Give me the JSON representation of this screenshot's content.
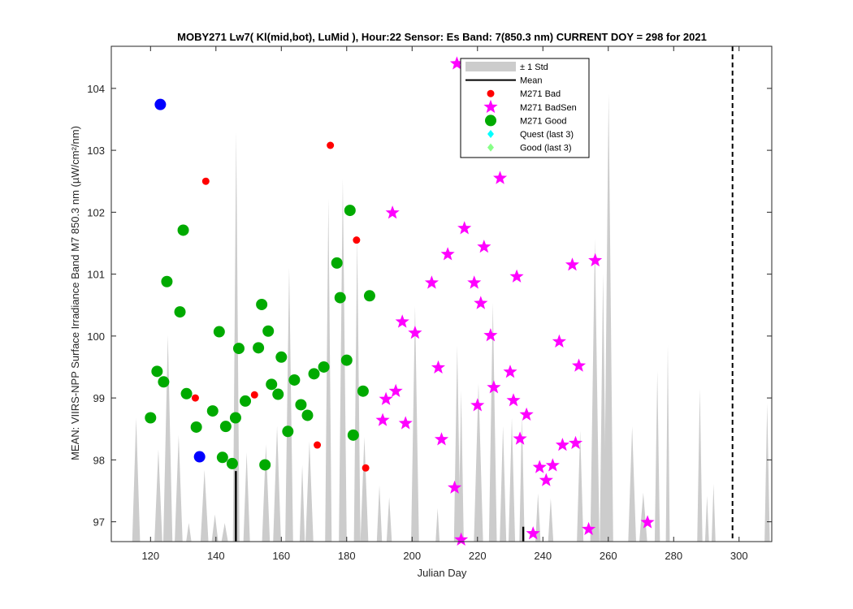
{
  "chart_data": {
    "type": "scatter",
    "title": "MOBY271   Lw7( Kl(mid,bot), LuMid ),   Hour:22 Sensor: Es Band: 7(850.3 nm)   CURRENT DOY = 298 for 2021",
    "xlabel": "Julian Day",
    "ylabel": "MEAN: VIIRS-NPP Surface Irradiance Band M7 850.3 nm (µW/cm²/nm)",
    "xlim": [
      108,
      310
    ],
    "ylim": [
      96.68,
      104.68
    ],
    "xticks": [
      120,
      140,
      160,
      180,
      200,
      220,
      240,
      260,
      280,
      300
    ],
    "yticks": [
      97,
      98,
      99,
      100,
      101,
      102,
      103,
      104
    ],
    "current_doy": 298,
    "grid": false,
    "legend_position": "top-center",
    "legend": [
      {
        "label": "± 1 Std",
        "kind": "patch",
        "color": "#cccccc"
      },
      {
        "label": "Mean",
        "kind": "line",
        "color": "#000000"
      },
      {
        "label": "M271 Bad",
        "kind": "marker-circle-small",
        "color": "#ff0000"
      },
      {
        "label": "M271 BadSen",
        "kind": "marker-star",
        "color": "#ff00ff"
      },
      {
        "label": "M271 Good",
        "kind": "marker-circle",
        "color": "#00aa00"
      },
      {
        "label": "Quest (last 3)",
        "kind": "marker-diamond",
        "color": "#00ffff"
      },
      {
        "label": "Good (last 3)",
        "kind": "marker-diamond",
        "color": "#88ff88"
      }
    ],
    "std_band": {
      "name": "± 1 Std",
      "color": "#cccccc",
      "spikes": [
        {
          "x": 115.6,
          "y": 98.68,
          "w": 1.2
        },
        {
          "x": 122.4,
          "y": 98.17,
          "w": 1.2
        },
        {
          "x": 125.3,
          "y": 100.02,
          "w": 1.4
        },
        {
          "x": 128.6,
          "y": 98.4,
          "w": 1.2
        },
        {
          "x": 131.7,
          "y": 96.98,
          "w": 0.8
        },
        {
          "x": 136.5,
          "y": 97.84,
          "w": 1.2
        },
        {
          "x": 139.7,
          "y": 97.12,
          "w": 1.0
        },
        {
          "x": 142.7,
          "y": 96.98,
          "w": 1.0
        },
        {
          "x": 146.2,
          "y": 103.31,
          "w": 1.0
        },
        {
          "x": 149.4,
          "y": 98.12,
          "w": 1.0
        },
        {
          "x": 155.3,
          "y": 98.25,
          "w": 1.2
        },
        {
          "x": 158.7,
          "y": 98.55,
          "w": 1.2
        },
        {
          "x": 162.4,
          "y": 101.11,
          "w": 1.2
        },
        {
          "x": 166.4,
          "y": 97.92,
          "w": 0.8
        },
        {
          "x": 168.6,
          "y": 98.3,
          "w": 1.2
        },
        {
          "x": 174.4,
          "y": 102.23,
          "w": 1.0
        },
        {
          "x": 178.8,
          "y": 102.55,
          "w": 1.2
        },
        {
          "x": 183.2,
          "y": 101.61,
          "w": 1.0
        },
        {
          "x": 185.4,
          "y": 98.37,
          "w": 1.2
        },
        {
          "x": 190.0,
          "y": 97.59,
          "w": 0.8
        },
        {
          "x": 193.0,
          "y": 97.4,
          "w": 0.8
        },
        {
          "x": 200.9,
          "y": 100.49,
          "w": 1.2
        },
        {
          "x": 207.8,
          "y": 97.22,
          "w": 0.6
        },
        {
          "x": 213.8,
          "y": 99.85,
          "w": 1.0
        },
        {
          "x": 215.0,
          "y": 99.12,
          "w": 0.8
        },
        {
          "x": 220.3,
          "y": 99.24,
          "w": 1.4
        },
        {
          "x": 224.7,
          "y": 100.54,
          "w": 1.2
        },
        {
          "x": 227.8,
          "y": 98.55,
          "w": 1.0
        },
        {
          "x": 230.5,
          "y": 98.68,
          "w": 1.0
        },
        {
          "x": 233.6,
          "y": 98.72,
          "w": 0.8
        },
        {
          "x": 238.5,
          "y": 97.46,
          "w": 0.8
        },
        {
          "x": 242.4,
          "y": 97.38,
          "w": 0.8
        },
        {
          "x": 251.4,
          "y": 98.47,
          "w": 1.0
        },
        {
          "x": 255.9,
          "y": 101.57,
          "w": 1.4
        },
        {
          "x": 258.4,
          "y": 101.01,
          "w": 1.0
        },
        {
          "x": 260.1,
          "y": 103.92,
          "w": 1.4
        },
        {
          "x": 267.3,
          "y": 98.54,
          "w": 1.2
        },
        {
          "x": 270.7,
          "y": 97.47,
          "w": 1.2
        },
        {
          "x": 275.0,
          "y": 99.44,
          "w": 0.8
        },
        {
          "x": 278.2,
          "y": 99.86,
          "w": 0.6
        },
        {
          "x": 288.0,
          "y": 99.15,
          "w": 0.8
        },
        {
          "x": 290.2,
          "y": 97.42,
          "w": 0.6
        },
        {
          "x": 292.2,
          "y": 97.61,
          "w": 0.6
        },
        {
          "x": 308.6,
          "y": 98.92,
          "w": 0.8
        }
      ]
    },
    "mean": {
      "name": "Mean",
      "color": "#000000",
      "segments": [
        {
          "x": 146.1,
          "y": 97.82
        },
        {
          "x": 234.0,
          "y": 96.92
        }
      ]
    },
    "series": [
      {
        "name": "M271 Bad",
        "marker": "circle-small",
        "color": "#ff0000",
        "points": [
          {
            "x": 136.9,
            "y": 102.5
          },
          {
            "x": 175.0,
            "y": 103.08
          },
          {
            "x": 183.0,
            "y": 101.55
          },
          {
            "x": 133.7,
            "y": 99.0
          },
          {
            "x": 151.8,
            "y": 99.05
          },
          {
            "x": 171.0,
            "y": 98.24
          },
          {
            "x": 185.8,
            "y": 97.87
          }
        ]
      },
      {
        "name": "M271 BadSen",
        "marker": "star",
        "color": "#ff00ff",
        "points": [
          {
            "x": 213.7,
            "y": 104.4
          },
          {
            "x": 226.9,
            "y": 102.55
          },
          {
            "x": 194.0,
            "y": 101.99
          },
          {
            "x": 216.0,
            "y": 101.74
          },
          {
            "x": 222.0,
            "y": 101.44
          },
          {
            "x": 210.9,
            "y": 101.32
          },
          {
            "x": 256.0,
            "y": 101.22
          },
          {
            "x": 249.0,
            "y": 101.15
          },
          {
            "x": 232.0,
            "y": 100.96
          },
          {
            "x": 206.0,
            "y": 100.86
          },
          {
            "x": 219.0,
            "y": 100.86
          },
          {
            "x": 221.0,
            "y": 100.53
          },
          {
            "x": 197.0,
            "y": 100.23
          },
          {
            "x": 200.9,
            "y": 100.05
          },
          {
            "x": 224.0,
            "y": 100.01
          },
          {
            "x": 245.0,
            "y": 99.91
          },
          {
            "x": 251.0,
            "y": 99.52
          },
          {
            "x": 208.0,
            "y": 99.49
          },
          {
            "x": 230.0,
            "y": 99.42
          },
          {
            "x": 225.0,
            "y": 99.17
          },
          {
            "x": 195.0,
            "y": 99.11
          },
          {
            "x": 192.0,
            "y": 98.98
          },
          {
            "x": 231.0,
            "y": 98.96
          },
          {
            "x": 220.0,
            "y": 98.88
          },
          {
            "x": 235.0,
            "y": 98.73
          },
          {
            "x": 191.0,
            "y": 98.64
          },
          {
            "x": 198.0,
            "y": 98.59
          },
          {
            "x": 233.0,
            "y": 98.34
          },
          {
            "x": 209.0,
            "y": 98.33
          },
          {
            "x": 250.0,
            "y": 98.27
          },
          {
            "x": 246.0,
            "y": 98.24
          },
          {
            "x": 243.0,
            "y": 97.91
          },
          {
            "x": 239.0,
            "y": 97.88
          },
          {
            "x": 241.0,
            "y": 97.67
          },
          {
            "x": 213.0,
            "y": 97.55
          },
          {
            "x": 272.0,
            "y": 96.99
          },
          {
            "x": 254.0,
            "y": 96.88
          },
          {
            "x": 237.0,
            "y": 96.81
          },
          {
            "x": 215.0,
            "y": 96.71
          }
        ]
      },
      {
        "name": "M271 Good",
        "marker": "circle",
        "color": "#00aa00",
        "points": [
          {
            "x": 120.0,
            "y": 98.68
          },
          {
            "x": 122.0,
            "y": 99.43
          },
          {
            "x": 124.0,
            "y": 99.26
          },
          {
            "x": 125.0,
            "y": 100.88
          },
          {
            "x": 129.0,
            "y": 100.39
          },
          {
            "x": 130.0,
            "y": 101.71
          },
          {
            "x": 131.0,
            "y": 99.07
          },
          {
            "x": 134.0,
            "y": 98.53
          },
          {
            "x": 139.0,
            "y": 98.79
          },
          {
            "x": 141.0,
            "y": 100.07
          },
          {
            "x": 142.0,
            "y": 98.04
          },
          {
            "x": 143.0,
            "y": 98.54
          },
          {
            "x": 145.0,
            "y": 97.94
          },
          {
            "x": 146.0,
            "y": 98.68
          },
          {
            "x": 147.0,
            "y": 99.8
          },
          {
            "x": 149.0,
            "y": 98.95
          },
          {
            "x": 153.0,
            "y": 99.81
          },
          {
            "x": 154.0,
            "y": 100.51
          },
          {
            "x": 155.0,
            "y": 97.92
          },
          {
            "x": 156.0,
            "y": 100.08
          },
          {
            "x": 157.0,
            "y": 99.22
          },
          {
            "x": 159.0,
            "y": 99.06
          },
          {
            "x": 160.0,
            "y": 99.66
          },
          {
            "x": 162.0,
            "y": 98.46
          },
          {
            "x": 164.0,
            "y": 99.29
          },
          {
            "x": 166.0,
            "y": 98.89
          },
          {
            "x": 168.0,
            "y": 98.72
          },
          {
            "x": 170.0,
            "y": 99.39
          },
          {
            "x": 173.0,
            "y": 99.5
          },
          {
            "x": 177.0,
            "y": 101.18
          },
          {
            "x": 178.0,
            "y": 100.62
          },
          {
            "x": 180.0,
            "y": 99.61
          },
          {
            "x": 181.0,
            "y": 102.03
          },
          {
            "x": 182.0,
            "y": 98.4
          },
          {
            "x": 185.0,
            "y": 99.11
          },
          {
            "x": 187.0,
            "y": 100.65
          }
        ]
      },
      {
        "name": "Blue markers",
        "marker": "circle",
        "color": "#0000ff",
        "points": [
          {
            "x": 123.0,
            "y": 103.74
          },
          {
            "x": 135.0,
            "y": 98.05
          }
        ]
      }
    ]
  }
}
